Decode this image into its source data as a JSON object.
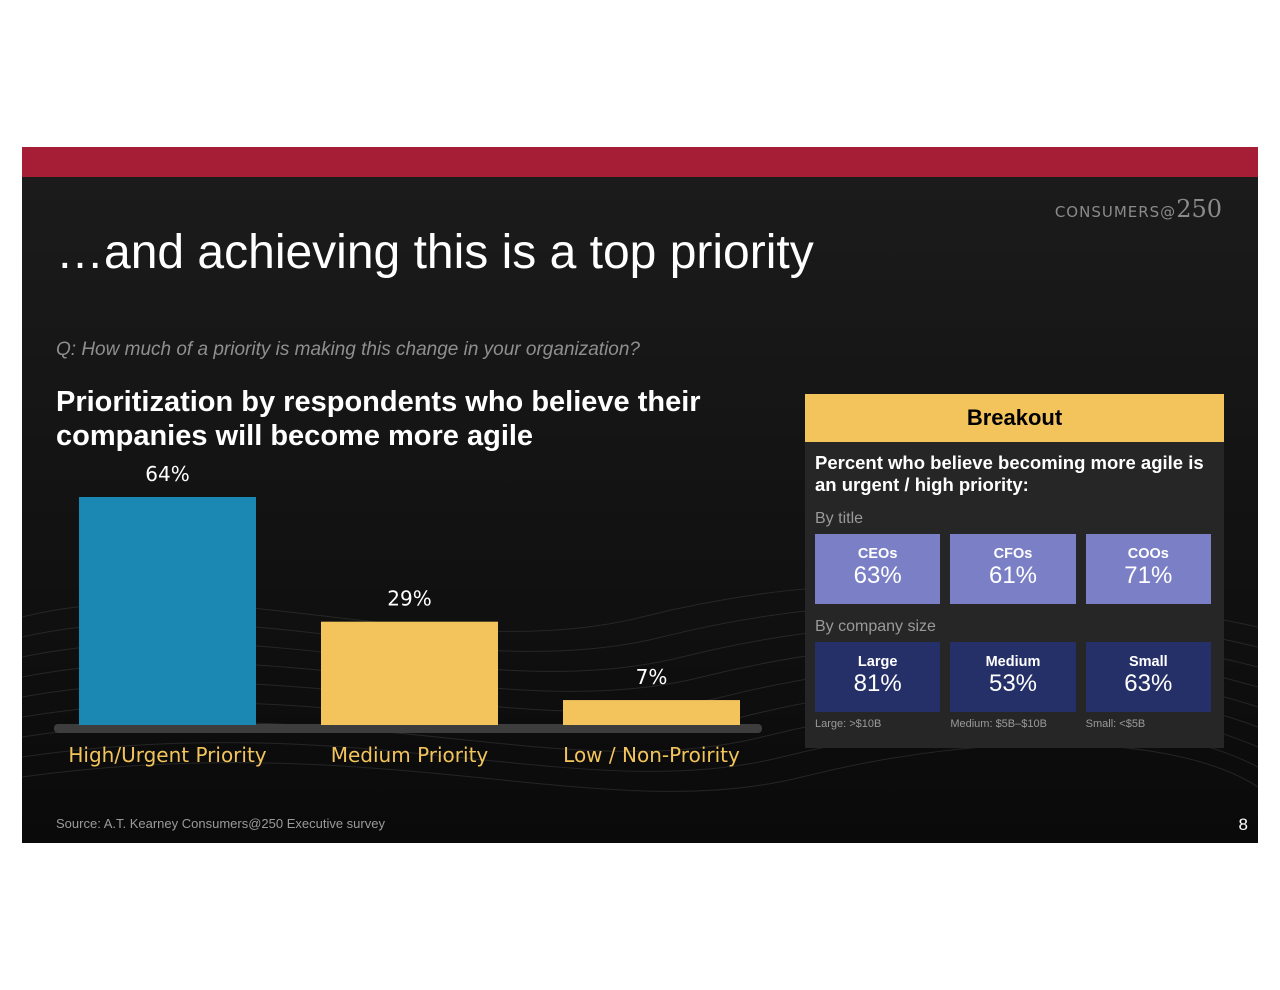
{
  "brand": {
    "text": "CONSUMERS@",
    "number": "250"
  },
  "slide_title": "…and achieving this is a top priority",
  "question": "Q: How much of a priority is making this change in your organization?",
  "chart_data": {
    "type": "bar",
    "title": "Prioritization by respondents who believe their companies will become more agile",
    "categories": [
      "High/Urgent Priority",
      "Medium Priority",
      "Low / Non-Proirity"
    ],
    "values": [
      64,
      29,
      7
    ],
    "data_labels": [
      "64%",
      "29%",
      "7%"
    ],
    "colors": [
      "#1b87b3",
      "#f3c45b",
      "#f3c45b"
    ],
    "ylim": [
      0,
      64
    ],
    "grid": false,
    "legend": "none"
  },
  "breakout": {
    "header": "Breakout",
    "description": "Percent  who believe becoming more agile is an urgent / high priority:",
    "by_title": {
      "label": "By title",
      "color": "#7b80c6",
      "tiles": [
        {
          "name": "CEOs",
          "value": "63%"
        },
        {
          "name": "CFOs",
          "value": "61%"
        },
        {
          "name": "COOs",
          "value": "71%"
        }
      ]
    },
    "by_size": {
      "label": "By company size",
      "color": "#263068",
      "tiles": [
        {
          "name": "Large",
          "value": "81%"
        },
        {
          "name": "Medium",
          "value": "53%"
        },
        {
          "name": "Small",
          "value": "63%"
        }
      ],
      "footnotes": [
        "Large: >$10B",
        "Medium: $5B–$10B",
        "Small: <$5B"
      ]
    }
  },
  "source": "Source: A.T. Kearney Consumers@250 Executive survey",
  "page_number": "8"
}
